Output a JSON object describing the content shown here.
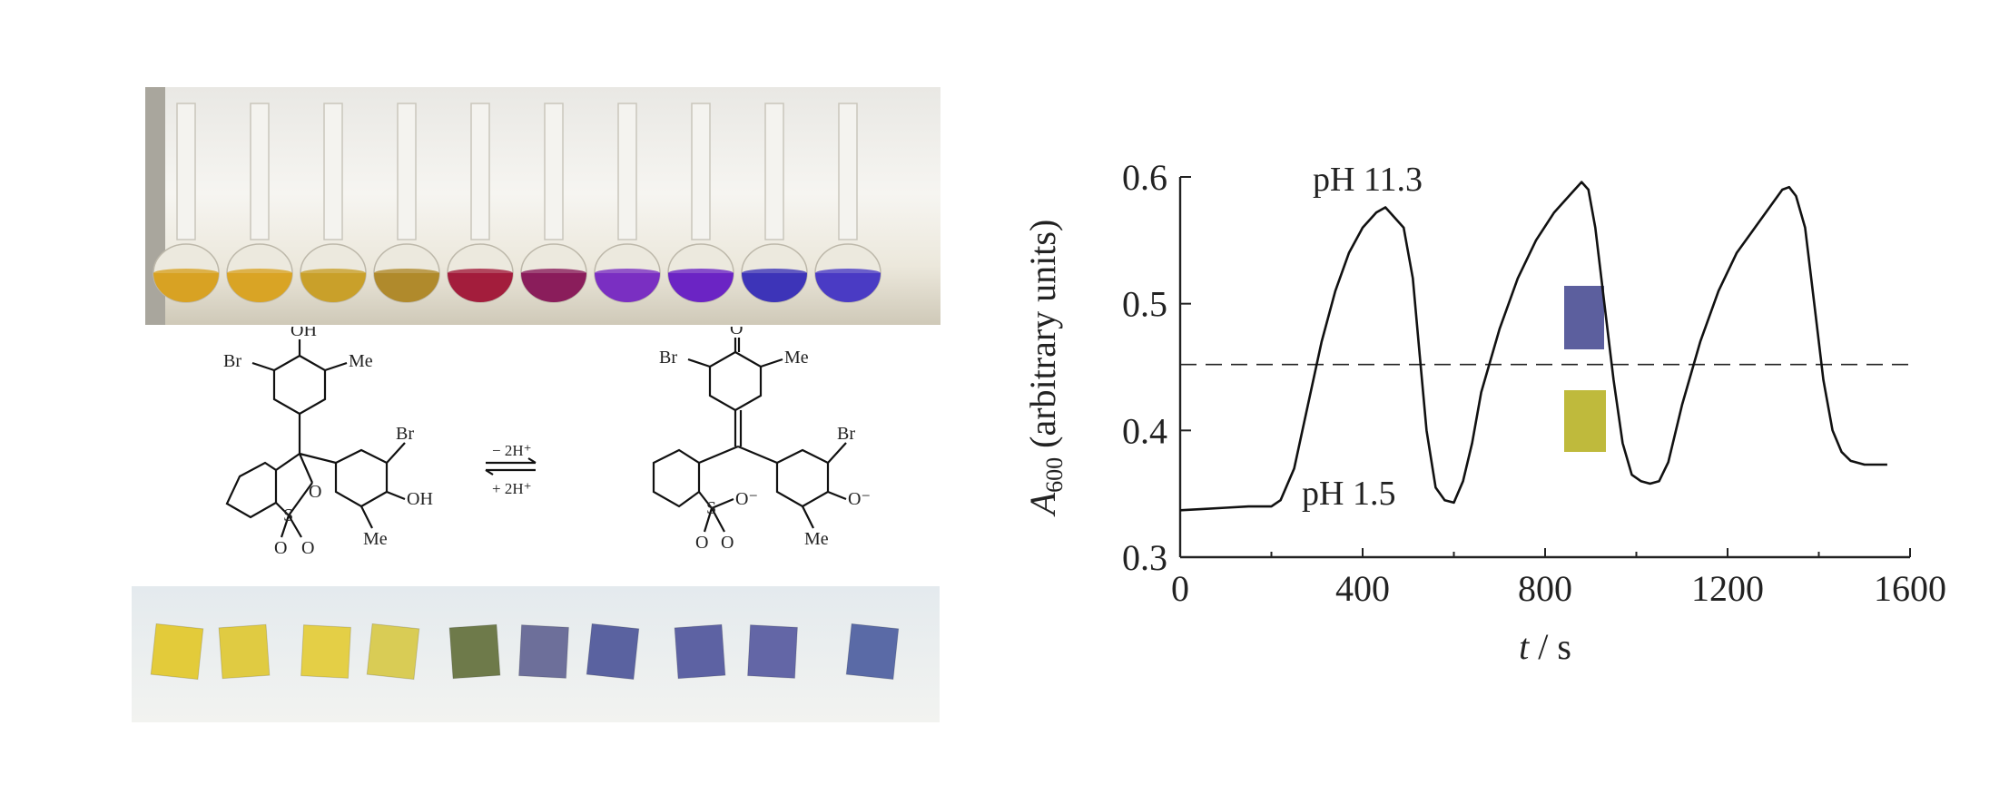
{
  "colors": {
    "yellow": "#d4a21c",
    "orange_yellow": "#c9a02a",
    "red": "#a31d3c",
    "magenta": "#8a1d5b",
    "violet": "#6b24c4",
    "blue_violet": "#3d34b8",
    "film_yellow": "#e1cc3c",
    "film_olive": "#6e7a4a",
    "film_blue": "#5a62a0",
    "axis": "#222222"
  },
  "flasks": {
    "colors": [
      "#d8a223",
      "#d9a425",
      "#c9a02a",
      "#b08a2c",
      "#a31d3c",
      "#8a1d5b",
      "#7a2fc2",
      "#6b24c4",
      "#3d34b8",
      "#4a3bc4"
    ]
  },
  "films": {
    "colors": [
      "#e3cb3a",
      "#e0cb42",
      "#e4cf46",
      "#d9cc55",
      "#6e7a4a",
      "#6d6f9a",
      "#5a62a0",
      "#5d62a3",
      "#6366a6",
      "#5a6aa6"
    ]
  },
  "scheme": {
    "left_oh_top": "OH",
    "left_br1": "Br",
    "left_me1": "Me",
    "left_br2": "Br",
    "left_oh2": "OH",
    "left_me2": "Me",
    "left_o_ring": "O",
    "left_s": "S",
    "left_o1": "O",
    "left_o2": "O",
    "arrow_top": "− 2H⁺",
    "arrow_bottom": "+ 2H⁺",
    "right_o_top": "O",
    "right_br1": "Br",
    "right_me1": "Me",
    "right_br2": "Br",
    "right_o_minus": "O⁻",
    "right_me2": "Me",
    "right_s": "S",
    "right_o_minus2": "O⁻",
    "right_o1": "O",
    "right_o2": "O"
  },
  "chart_data": {
    "type": "line",
    "title": "",
    "xlabel_italic": "t",
    "xlabel_rest": " / s",
    "ylabel_symbol": "A",
    "ylabel_sub": "600",
    "ylabel_rest": " (arbitrary units)",
    "xlim": [
      0,
      1600
    ],
    "ylim": [
      0.3,
      0.6
    ],
    "x_ticks": [
      0,
      400,
      800,
      1200,
      1600
    ],
    "x_tick_labels": [
      "0",
      "400",
      "800",
      "1200",
      "1600"
    ],
    "y_ticks": [
      0.3,
      0.4,
      0.5,
      0.6
    ],
    "y_tick_labels": [
      "0.3",
      "0.4",
      "0.5",
      "0.6"
    ],
    "annotations": {
      "high": "pH 11.3",
      "low": "pH 1.5"
    },
    "reference_line": {
      "y": 0.452,
      "style": "dashed"
    },
    "inset_colors": {
      "top": "#5c5f9e",
      "bottom": "#bfba3c"
    },
    "series": [
      {
        "x": [
          0,
          50,
          100,
          150,
          200,
          220,
          250,
          280,
          310,
          340,
          370,
          400,
          430,
          450,
          470,
          490,
          510,
          525,
          540,
          560,
          580,
          600,
          620,
          640,
          660,
          700,
          740,
          780,
          820,
          860,
          880,
          895,
          910,
          930,
          950,
          970,
          990,
          1010,
          1030,
          1050,
          1070,
          1100,
          1140,
          1180,
          1220,
          1260,
          1300,
          1320,
          1335,
          1350,
          1370,
          1390,
          1410,
          1430,
          1450,
          1470,
          1500,
          1550
        ],
        "y": [
          0.337,
          0.338,
          0.339,
          0.34,
          0.34,
          0.345,
          0.37,
          0.42,
          0.47,
          0.51,
          0.54,
          0.56,
          0.572,
          0.576,
          0.568,
          0.56,
          0.52,
          0.46,
          0.4,
          0.355,
          0.345,
          0.343,
          0.36,
          0.39,
          0.43,
          0.48,
          0.52,
          0.55,
          0.572,
          0.588,
          0.596,
          0.59,
          0.56,
          0.5,
          0.44,
          0.39,
          0.365,
          0.36,
          0.358,
          0.36,
          0.375,
          0.42,
          0.47,
          0.51,
          0.54,
          0.56,
          0.58,
          0.59,
          0.592,
          0.585,
          0.56,
          0.5,
          0.44,
          0.4,
          0.383,
          0.376,
          0.373,
          0.373
        ]
      }
    ]
  }
}
